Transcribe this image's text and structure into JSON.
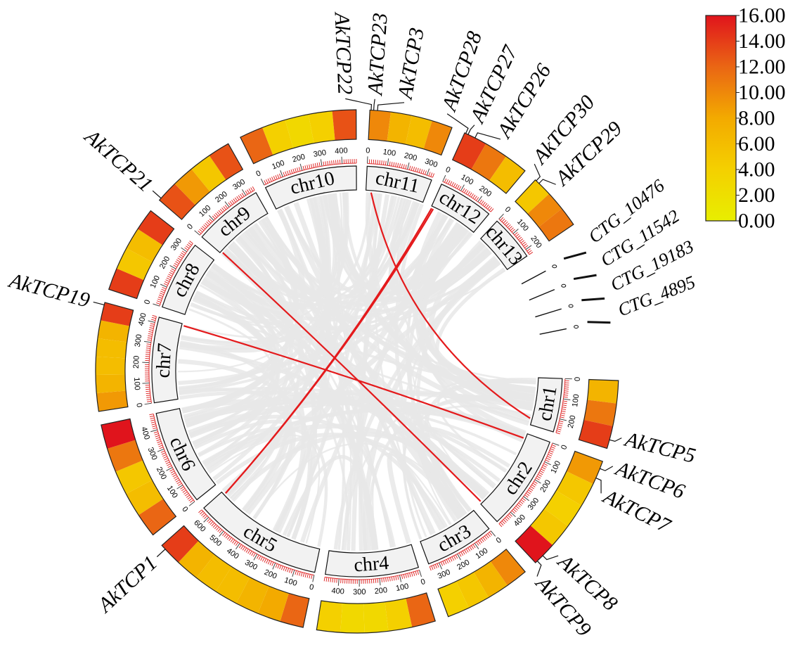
{
  "chart_data": {
    "type": "circos",
    "units_note_label": "",
    "chromosomes": [
      {
        "name": "chr1",
        "length": 270,
        "density": [
          7,
          11,
          14
        ]
      },
      {
        "name": "chr2",
        "length": 480,
        "density": [
          9,
          5,
          4,
          5,
          16
        ]
      },
      {
        "name": "chr3",
        "length": 350,
        "density": [
          10,
          7,
          5,
          4
        ]
      },
      {
        "name": "chr4",
        "length": 470,
        "density": [
          12,
          4,
          3,
          3,
          4
        ]
      },
      {
        "name": "chr5",
        "length": 650,
        "density": [
          12,
          8,
          7,
          6,
          6,
          7,
          14
        ]
      },
      {
        "name": "chr6",
        "length": 480,
        "density": [
          12,
          6,
          5,
          11,
          16
        ]
      },
      {
        "name": "chr7",
        "length": 430,
        "density": [
          9,
          7,
          6,
          6,
          7,
          14
        ]
      },
      {
        "name": "chr8",
        "length": 350,
        "density": [
          14,
          5,
          6,
          14
        ]
      },
      {
        "name": "chr9",
        "length": 350,
        "density": [
          13,
          9,
          5,
          13
        ]
      },
      {
        "name": "chr10",
        "length": 470,
        "density": [
          12,
          4,
          3,
          4,
          13
        ]
      },
      {
        "name": "chr11",
        "length": 330,
        "density": [
          10,
          7,
          6,
          10
        ]
      },
      {
        "name": "chr12",
        "length": 280,
        "density": [
          14,
          11,
          6
        ]
      },
      {
        "name": "chr13",
        "length": 230,
        "density": [
          5,
          10,
          11
        ]
      }
    ],
    "contigs": [
      "CTG_10476",
      "CTG_11542",
      "CTG_19183",
      "CTG_4895"
    ],
    "genes": [
      {
        "name": "AkTCP5",
        "chr": "chr1",
        "pos": 235
      },
      {
        "name": "AkTCP6",
        "chr": "chr2",
        "pos": 30
      },
      {
        "name": "AkTCP7",
        "chr": "chr2",
        "pos": 70
      },
      {
        "name": "AkTCP8",
        "chr": "chr2",
        "pos": 440
      },
      {
        "name": "AkTCP9",
        "chr": "chr2",
        "pos": 470
      },
      {
        "name": "AkTCP1",
        "chr": "chr5",
        "pos": 630
      },
      {
        "name": "AkTCP19",
        "chr": "chr7",
        "pos": 420
      },
      {
        "name": "AkTCP21",
        "chr": "chr9",
        "pos": 10
      },
      {
        "name": "AkTCP22",
        "chr": "chr11",
        "pos": 5
      },
      {
        "name": "AkTCP23",
        "chr": "chr11",
        "pos": 15
      },
      {
        "name": "AkTCP3",
        "chr": "chr11",
        "pos": 30
      },
      {
        "name": "AkTCP28",
        "chr": "chr12",
        "pos": 5
      },
      {
        "name": "AkTCP27",
        "chr": "chr12",
        "pos": 15
      },
      {
        "name": "AkTCP26",
        "chr": "chr12",
        "pos": 45
      },
      {
        "name": "AkTCP30",
        "chr": "chr13",
        "pos": 5
      },
      {
        "name": "AkTCP29",
        "chr": "chr13",
        "pos": 20
      }
    ],
    "segmental_duplications": [
      [
        "AkTCP19",
        "AkTCP6"
      ],
      [
        "AkTCP21",
        "AkTCP9"
      ],
      [
        "AkTCP1",
        "AkTCP27"
      ],
      [
        "AkTCP1",
        "AkTCP28"
      ],
      [
        "AkTCP3",
        "AkTCP5"
      ]
    ],
    "tick_interval": 100,
    "colors": {
      "duplication_link": "#e41a1c",
      "background_link": "#e8e8e8"
    },
    "color_scale": {
      "min": 0,
      "max": 16,
      "tick_labels": [
        "16.00",
        "14.00",
        "12.00",
        "10.00",
        "8.00",
        "6.00",
        "4.00",
        "2.00",
        "0.00"
      ],
      "stops": [
        {
          "value": 0,
          "color": "#e8ee00"
        },
        {
          "value": 4,
          "color": "#f4d000"
        },
        {
          "value": 8,
          "color": "#f3aa00"
        },
        {
          "value": 12,
          "color": "#ea6614"
        },
        {
          "value": 16,
          "color": "#e0141c"
        }
      ]
    }
  }
}
